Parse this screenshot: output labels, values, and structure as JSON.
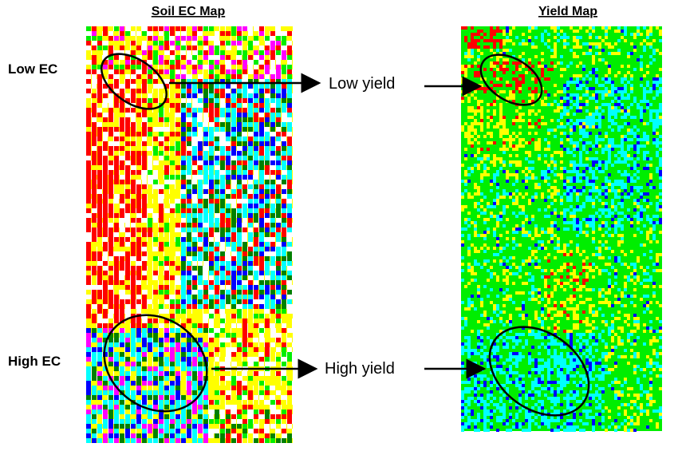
{
  "left_map": {
    "title": "Soil EC Map",
    "low_label": "Low EC",
    "high_label": "High EC"
  },
  "right_map": {
    "title": "Yield Map"
  },
  "annotations": {
    "low": "Low yield",
    "high": "High yield"
  }
}
